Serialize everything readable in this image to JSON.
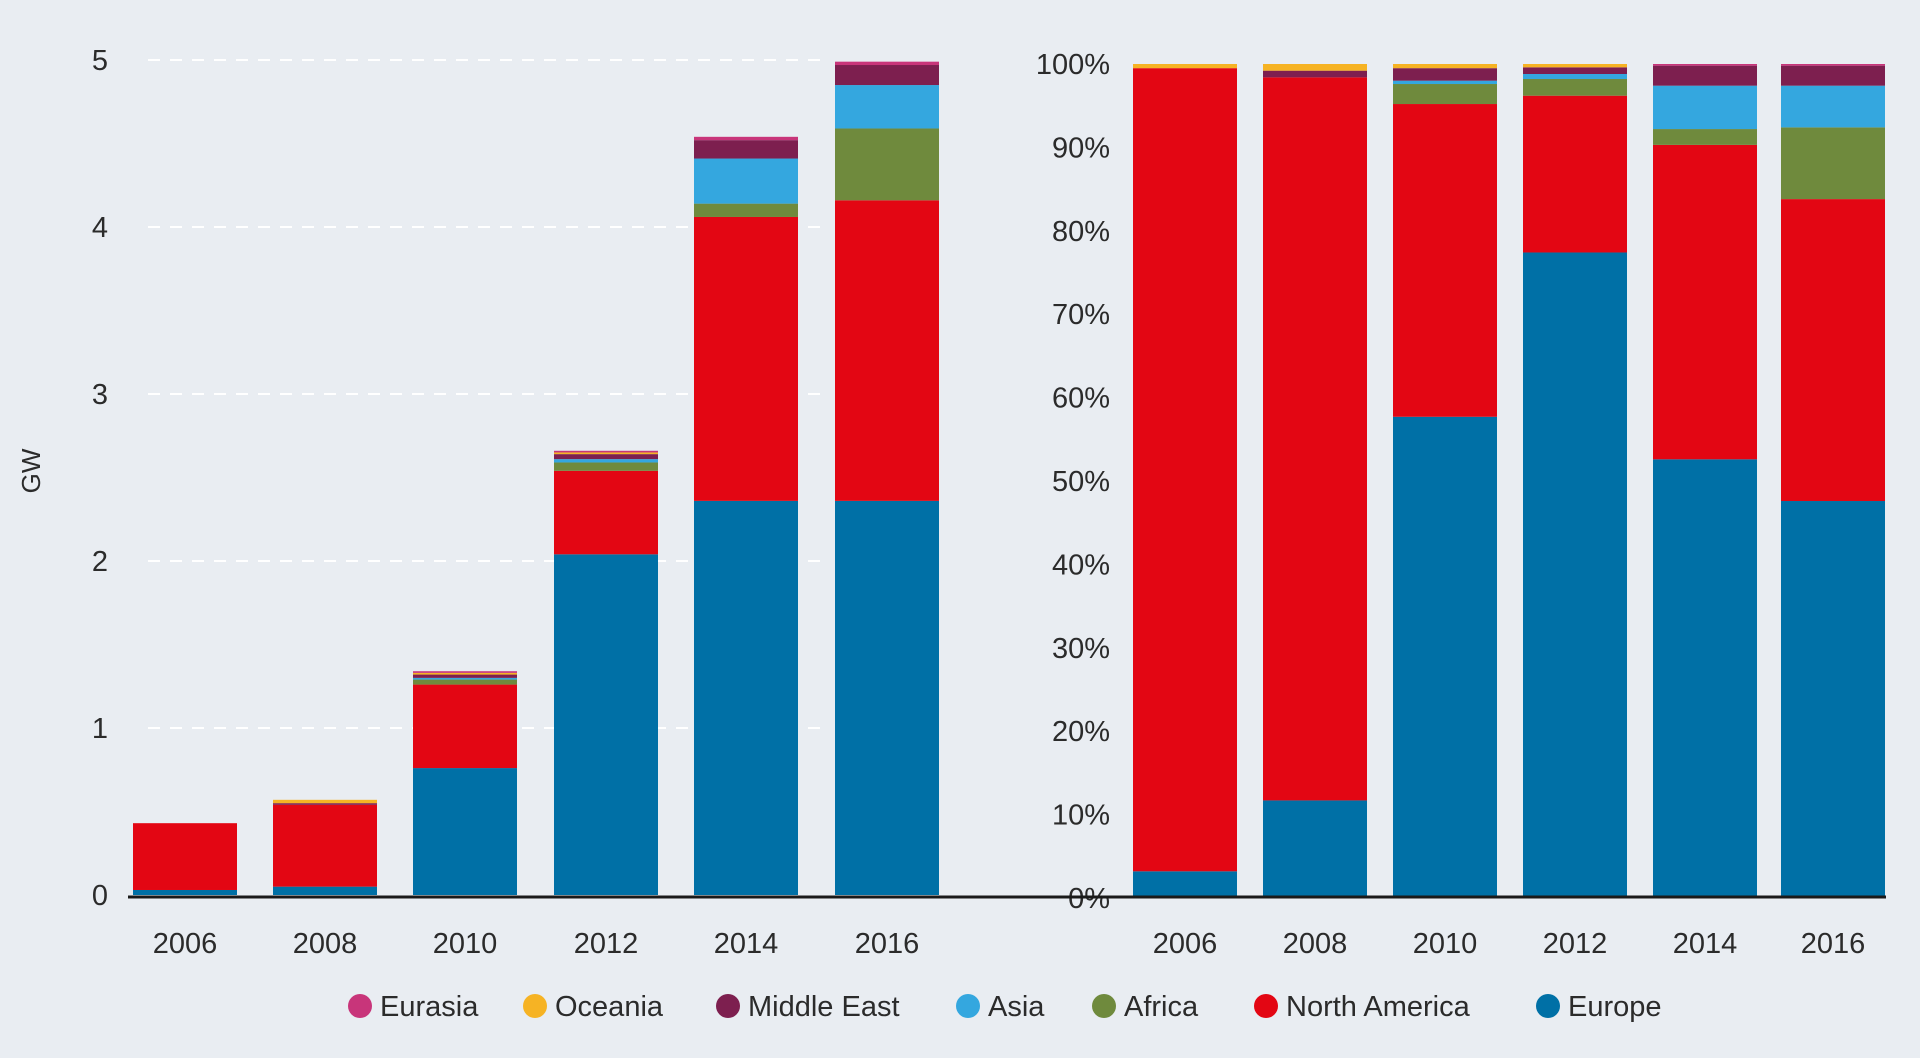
{
  "chart_data": [
    {
      "type": "bar",
      "stacked": true,
      "ylabel": "GW",
      "xlabel": "",
      "ylim": [
        0,
        5
      ],
      "yticks": [
        "0",
        "1",
        "2",
        "3",
        "4",
        "5"
      ],
      "grid": true,
      "categories": [
        "2006",
        "2008",
        "2010",
        "2012",
        "2014",
        "2016"
      ],
      "series": [
        {
          "name": "Europe",
          "values": [
            0.03,
            0.05,
            0.76,
            2.04,
            2.36,
            2.36
          ]
        },
        {
          "name": "North America",
          "values": [
            0.4,
            0.49,
            0.5,
            0.5,
            1.7,
            1.8
          ]
        },
        {
          "name": "Africa",
          "values": [
            0,
            0,
            0.03,
            0.05,
            0.08,
            0.43
          ]
        },
        {
          "name": "Asia",
          "values": [
            0,
            0,
            0.01,
            0.02,
            0.27,
            0.26
          ]
        },
        {
          "name": "Middle East",
          "values": [
            0,
            0.01,
            0.02,
            0.03,
            0.11,
            0.12
          ]
        },
        {
          "name": "Oceania",
          "values": [
            0,
            0.02,
            0.01,
            0.01,
            0,
            0
          ]
        },
        {
          "name": "Eurasia",
          "values": [
            0,
            0,
            0.01,
            0.01,
            0.02,
            0.02
          ]
        }
      ]
    },
    {
      "type": "bar",
      "stacked": true,
      "ylabel": "",
      "xlabel": "",
      "ylim": [
        0,
        100
      ],
      "yticks": [
        "0%",
        "10%",
        "20%",
        "30%",
        "40%",
        "50%",
        "60%",
        "70%",
        "80%",
        "90%",
        "100%"
      ],
      "grid": false,
      "categories": [
        "2006",
        "2008",
        "2010",
        "2012",
        "2014",
        "2016"
      ],
      "series": [
        {
          "name": "Europe",
          "values": [
            3.2,
            11.7,
            57.7,
            77.4,
            52.6,
            47.6
          ]
        },
        {
          "name": "North America",
          "values": [
            96.3,
            86.7,
            37.5,
            18.8,
            37.7,
            36.2
          ]
        },
        {
          "name": "Africa",
          "values": [
            0,
            0,
            2.4,
            2.0,
            1.9,
            8.6
          ]
        },
        {
          "name": "Asia",
          "values": [
            0,
            0,
            0.4,
            0.6,
            5.2,
            5.0
          ]
        },
        {
          "name": "Middle East",
          "values": [
            0,
            0.8,
            1.5,
            0.8,
            2.4,
            2.4
          ]
        },
        {
          "name": "Oceania",
          "values": [
            0.5,
            0.8,
            0.5,
            0.4,
            0,
            0
          ]
        },
        {
          "name": "Eurasia",
          "values": [
            0,
            0,
            0,
            0,
            0.2,
            0.2
          ]
        }
      ]
    }
  ],
  "legend": {
    "placement": "bottom",
    "items": [
      {
        "label": "Eurasia",
        "color": "#c8357a"
      },
      {
        "label": "Oceania",
        "color": "#f6b324"
      },
      {
        "label": "Middle East",
        "color": "#7d1f4f"
      },
      {
        "label": "Asia",
        "color": "#34a7df"
      },
      {
        "label": "Africa",
        "color": "#6f8a3d"
      },
      {
        "label": "North America",
        "color": "#e30613"
      },
      {
        "label": "Europe",
        "color": "#0070a6"
      }
    ]
  },
  "colors": {
    "Europe": "#0070a6",
    "North America": "#e30613",
    "Africa": "#6f8a3d",
    "Asia": "#34a7df",
    "Middle East": "#7d1f4f",
    "Oceania": "#f6b324",
    "Eurasia": "#c8357a",
    "background": "#e9edf2"
  }
}
